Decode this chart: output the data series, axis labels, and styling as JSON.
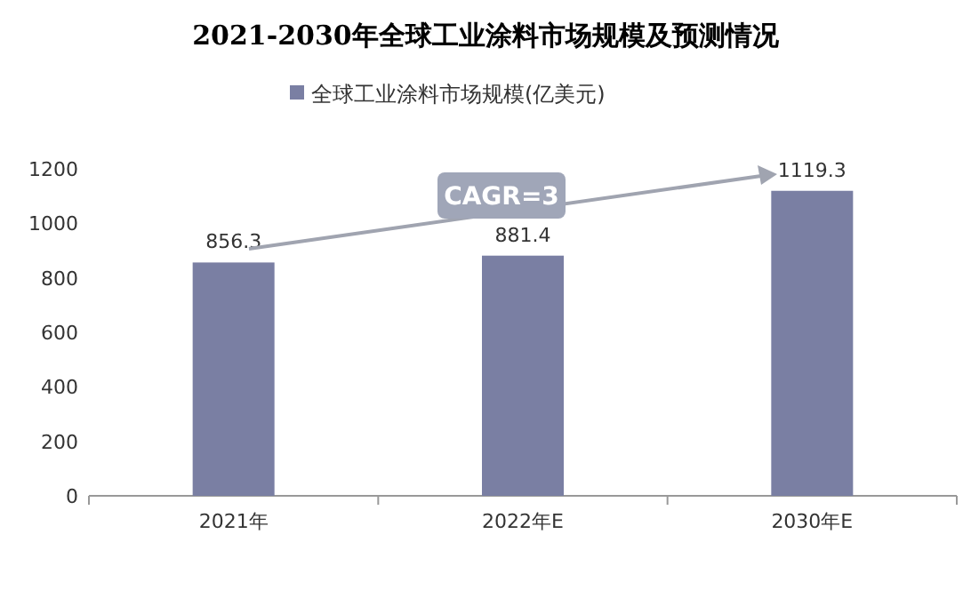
{
  "chart_data": {
    "type": "bar",
    "title": "2021-2030年全球工业涂料市场规模及预测情况",
    "categories": [
      "2021年",
      "2022年E",
      "2030年E"
    ],
    "series": [
      {
        "name": "全球工业涂料市场规模(亿美元)",
        "color": "#7a7fa3",
        "values": [
          856.3,
          881.4,
          1119.3
        ]
      }
    ],
    "ylim": [
      0,
      1200
    ],
    "yticks": [
      0,
      200,
      400,
      600,
      800,
      1000,
      1200
    ],
    "data_labels": true,
    "legend": "top",
    "grid": false,
    "annotations": [
      "CAGR=3"
    ]
  }
}
